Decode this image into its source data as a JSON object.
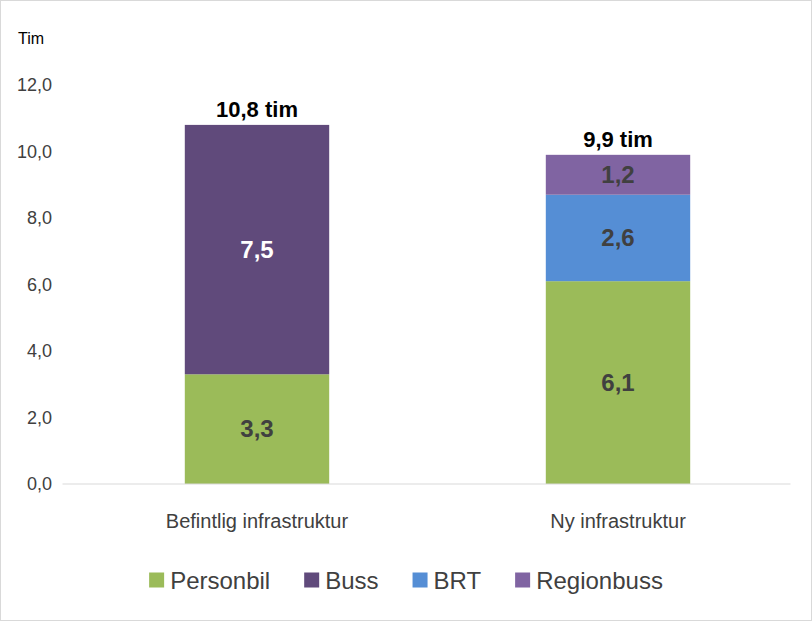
{
  "chart_data": {
    "type": "bar",
    "stacked": true,
    "data_labels": true,
    "grid": false,
    "legend": "bottom",
    "y_label": "Tim",
    "categories": [
      "Befintlig infrastruktur",
      "Ny infrastruktur"
    ],
    "annotations": [
      "10,8 tim",
      "9,9 tim"
    ],
    "ylim": [
      0,
      12
    ],
    "yticks": [
      {
        "value": 0,
        "label": "0,0"
      },
      {
        "value": 2,
        "label": "2,0"
      },
      {
        "value": 4,
        "label": "4,0"
      },
      {
        "value": 6,
        "label": "6,0"
      },
      {
        "value": 8,
        "label": "8,0"
      },
      {
        "value": 10,
        "label": "10,0"
      },
      {
        "value": 12,
        "label": "12,0"
      }
    ],
    "series": [
      {
        "name": "Personbil",
        "color": "#9bbb59",
        "values": [
          3.3,
          6.1
        ],
        "value_labels": [
          "3,3",
          "6,1"
        ]
      },
      {
        "name": "Buss",
        "color": "#604a7b",
        "values": [
          7.5,
          null
        ],
        "value_labels": [
          "7,5",
          null
        ]
      },
      {
        "name": "BRT",
        "color": "#558ed5",
        "values": [
          null,
          2.6
        ],
        "value_labels": [
          null,
          "2,6"
        ]
      },
      {
        "name": "Regionbuss",
        "color": "#8064a2",
        "values": [
          null,
          1.2
        ],
        "value_labels": [
          null,
          "1,2"
        ]
      }
    ]
  }
}
